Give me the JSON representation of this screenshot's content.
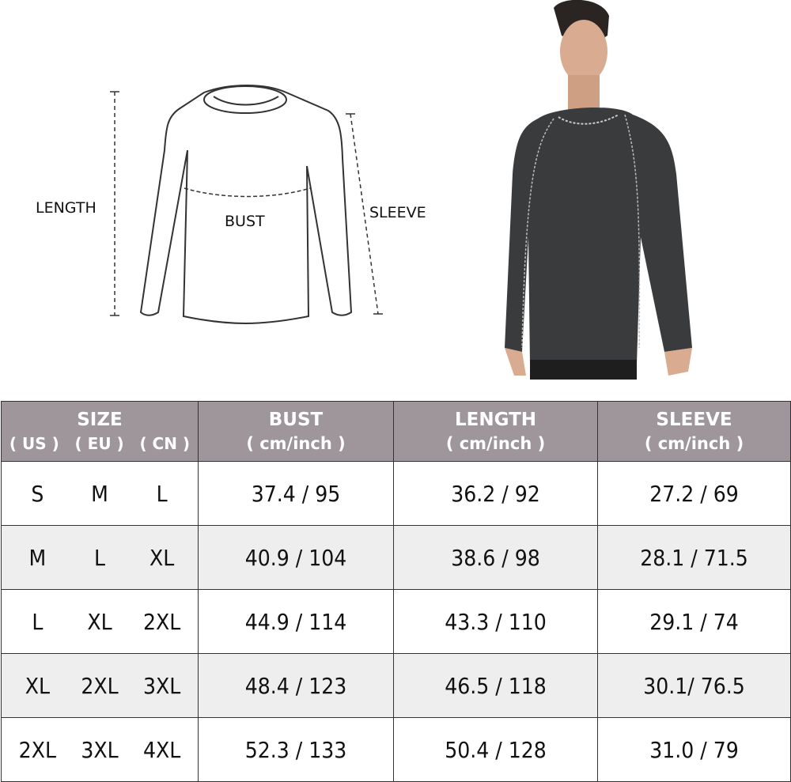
{
  "diagram": {
    "length_label": "LENGTH",
    "bust_label": "BUST",
    "sleeve_label": "SLEEVE"
  },
  "colors": {
    "header_bg": "#9e969a",
    "alt_row_bg": "#eeeeee",
    "shirt": "#3a3b3d"
  },
  "table": {
    "size_header": "SIZE",
    "size_systems": [
      "( US )",
      "( EU )",
      "( CN )"
    ],
    "columns": [
      {
        "label": "BUST",
        "unit": "( cm/inch )"
      },
      {
        "label": "LENGTH",
        "unit": "( cm/inch )"
      },
      {
        "label": "SLEEVE",
        "unit": "( cm/inch )"
      }
    ],
    "rows": [
      {
        "us": "S",
        "eu": "M",
        "cn": "L",
        "bust": "37.4 / 95",
        "length": "36.2 / 92",
        "sleeve": "27.2 / 69"
      },
      {
        "us": "M",
        "eu": "L",
        "cn": "XL",
        "bust": "40.9 / 104",
        "length": "38.6 / 98",
        "sleeve": "28.1 / 71.5"
      },
      {
        "us": "L",
        "eu": "XL",
        "cn": "2XL",
        "bust": "44.9 / 114",
        "length": "43.3 / 110",
        "sleeve": "29.1 / 74"
      },
      {
        "us": "XL",
        "eu": "2XL",
        "cn": "3XL",
        "bust": "48.4 / 123",
        "length": "46.5 / 118",
        "sleeve": "30.1/ 76.5"
      },
      {
        "us": "2XL",
        "eu": "3XL",
        "cn": "4XL",
        "bust": "52.3 / 133",
        "length": "50.4 / 128",
        "sleeve": "31.0 / 79"
      }
    ]
  }
}
